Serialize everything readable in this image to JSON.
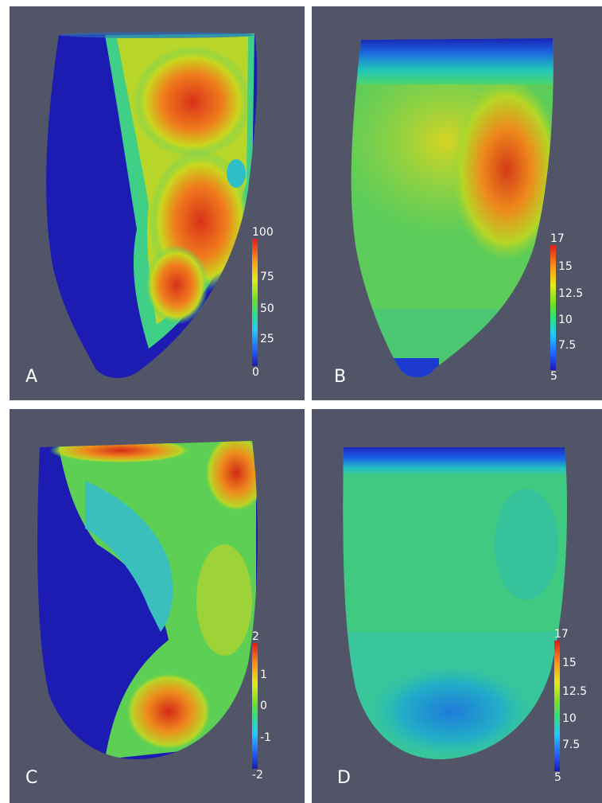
{
  "panels": [
    {
      "letter": "A",
      "colorbar": {
        "min": 0,
        "max": 100,
        "ticks": [
          "100",
          "75",
          "50",
          "25",
          "0"
        ]
      }
    },
    {
      "letter": "B",
      "colorbar": {
        "min": 5,
        "max": 17,
        "ticks": [
          "17",
          "15",
          "12.5",
          "10",
          "7.5",
          "5"
        ]
      }
    },
    {
      "letter": "C",
      "colorbar": {
        "min": -2,
        "max": 2,
        "ticks": [
          "2",
          "1",
          "0",
          "-1",
          "-2"
        ]
      }
    },
    {
      "letter": "D",
      "colorbar": {
        "min": 5,
        "max": 17,
        "ticks": [
          "17",
          "15",
          "12.5",
          "10",
          "7.5",
          "5"
        ]
      }
    }
  ],
  "colors": {
    "background": "#525467",
    "low": "#1b1bb0",
    "high": "#e11a1a"
  }
}
